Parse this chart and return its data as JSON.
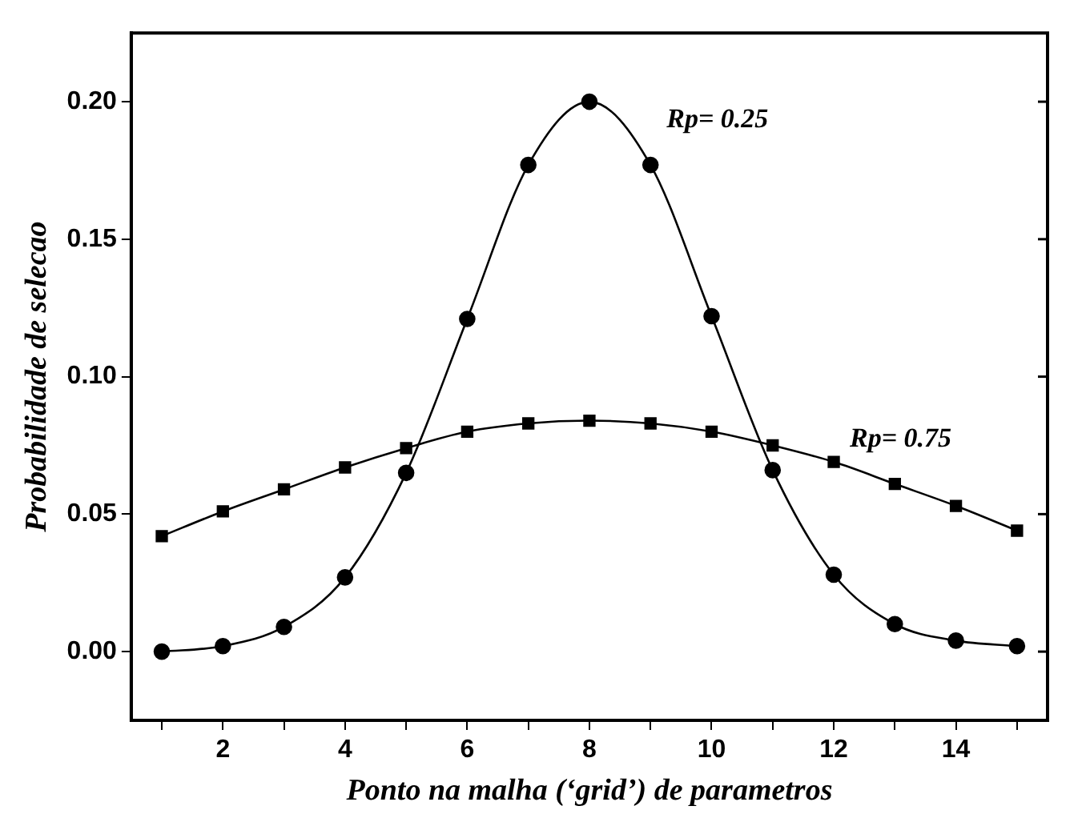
{
  "chart_data": {
    "type": "line",
    "xlabel": "Ponto na malha (‘grid’) de parametros",
    "ylabel": "Probabilidade de selecao",
    "x": [
      1,
      2,
      3,
      4,
      5,
      6,
      7,
      8,
      9,
      10,
      11,
      12,
      13,
      14,
      15
    ],
    "series": [
      {
        "name": "Rp= 0.25",
        "color": "#000000",
        "marker": "circle",
        "values": [
          0.0,
          0.002,
          0.009,
          0.027,
          0.065,
          0.121,
          0.177,
          0.2,
          0.177,
          0.122,
          0.066,
          0.028,
          0.01,
          0.004,
          0.002
        ]
      },
      {
        "name": "Rp= 0.75",
        "color": "#000000",
        "marker": "square",
        "values": [
          0.042,
          0.051,
          0.059,
          0.067,
          0.074,
          0.08,
          0.083,
          0.084,
          0.083,
          0.08,
          0.075,
          0.069,
          0.061,
          0.053,
          0.044
        ]
      }
    ],
    "xlim": [
      0.5,
      15.5
    ],
    "xticks": [
      {
        "value": 1,
        "label": null
      },
      2,
      {
        "value": 3,
        "label": null
      },
      4,
      {
        "value": 5,
        "label": null
      },
      6,
      {
        "value": 7,
        "label": null
      },
      8,
      {
        "value": 9,
        "label": null
      },
      10,
      {
        "value": 11,
        "label": null
      },
      12,
      {
        "value": 13,
        "label": null
      },
      14,
      {
        "value": 15,
        "label": null
      }
    ],
    "ylim": [
      -0.025,
      0.225
    ],
    "yticks": [
      {
        "value": 0,
        "label": "0.00"
      },
      0.05,
      {
        "value": 0.1,
        "label": "0.10"
      },
      0.15,
      {
        "value": 0.2,
        "label": "0.20"
      }
    ],
    "grid": false,
    "legend": false,
    "line_style": "solid"
  }
}
